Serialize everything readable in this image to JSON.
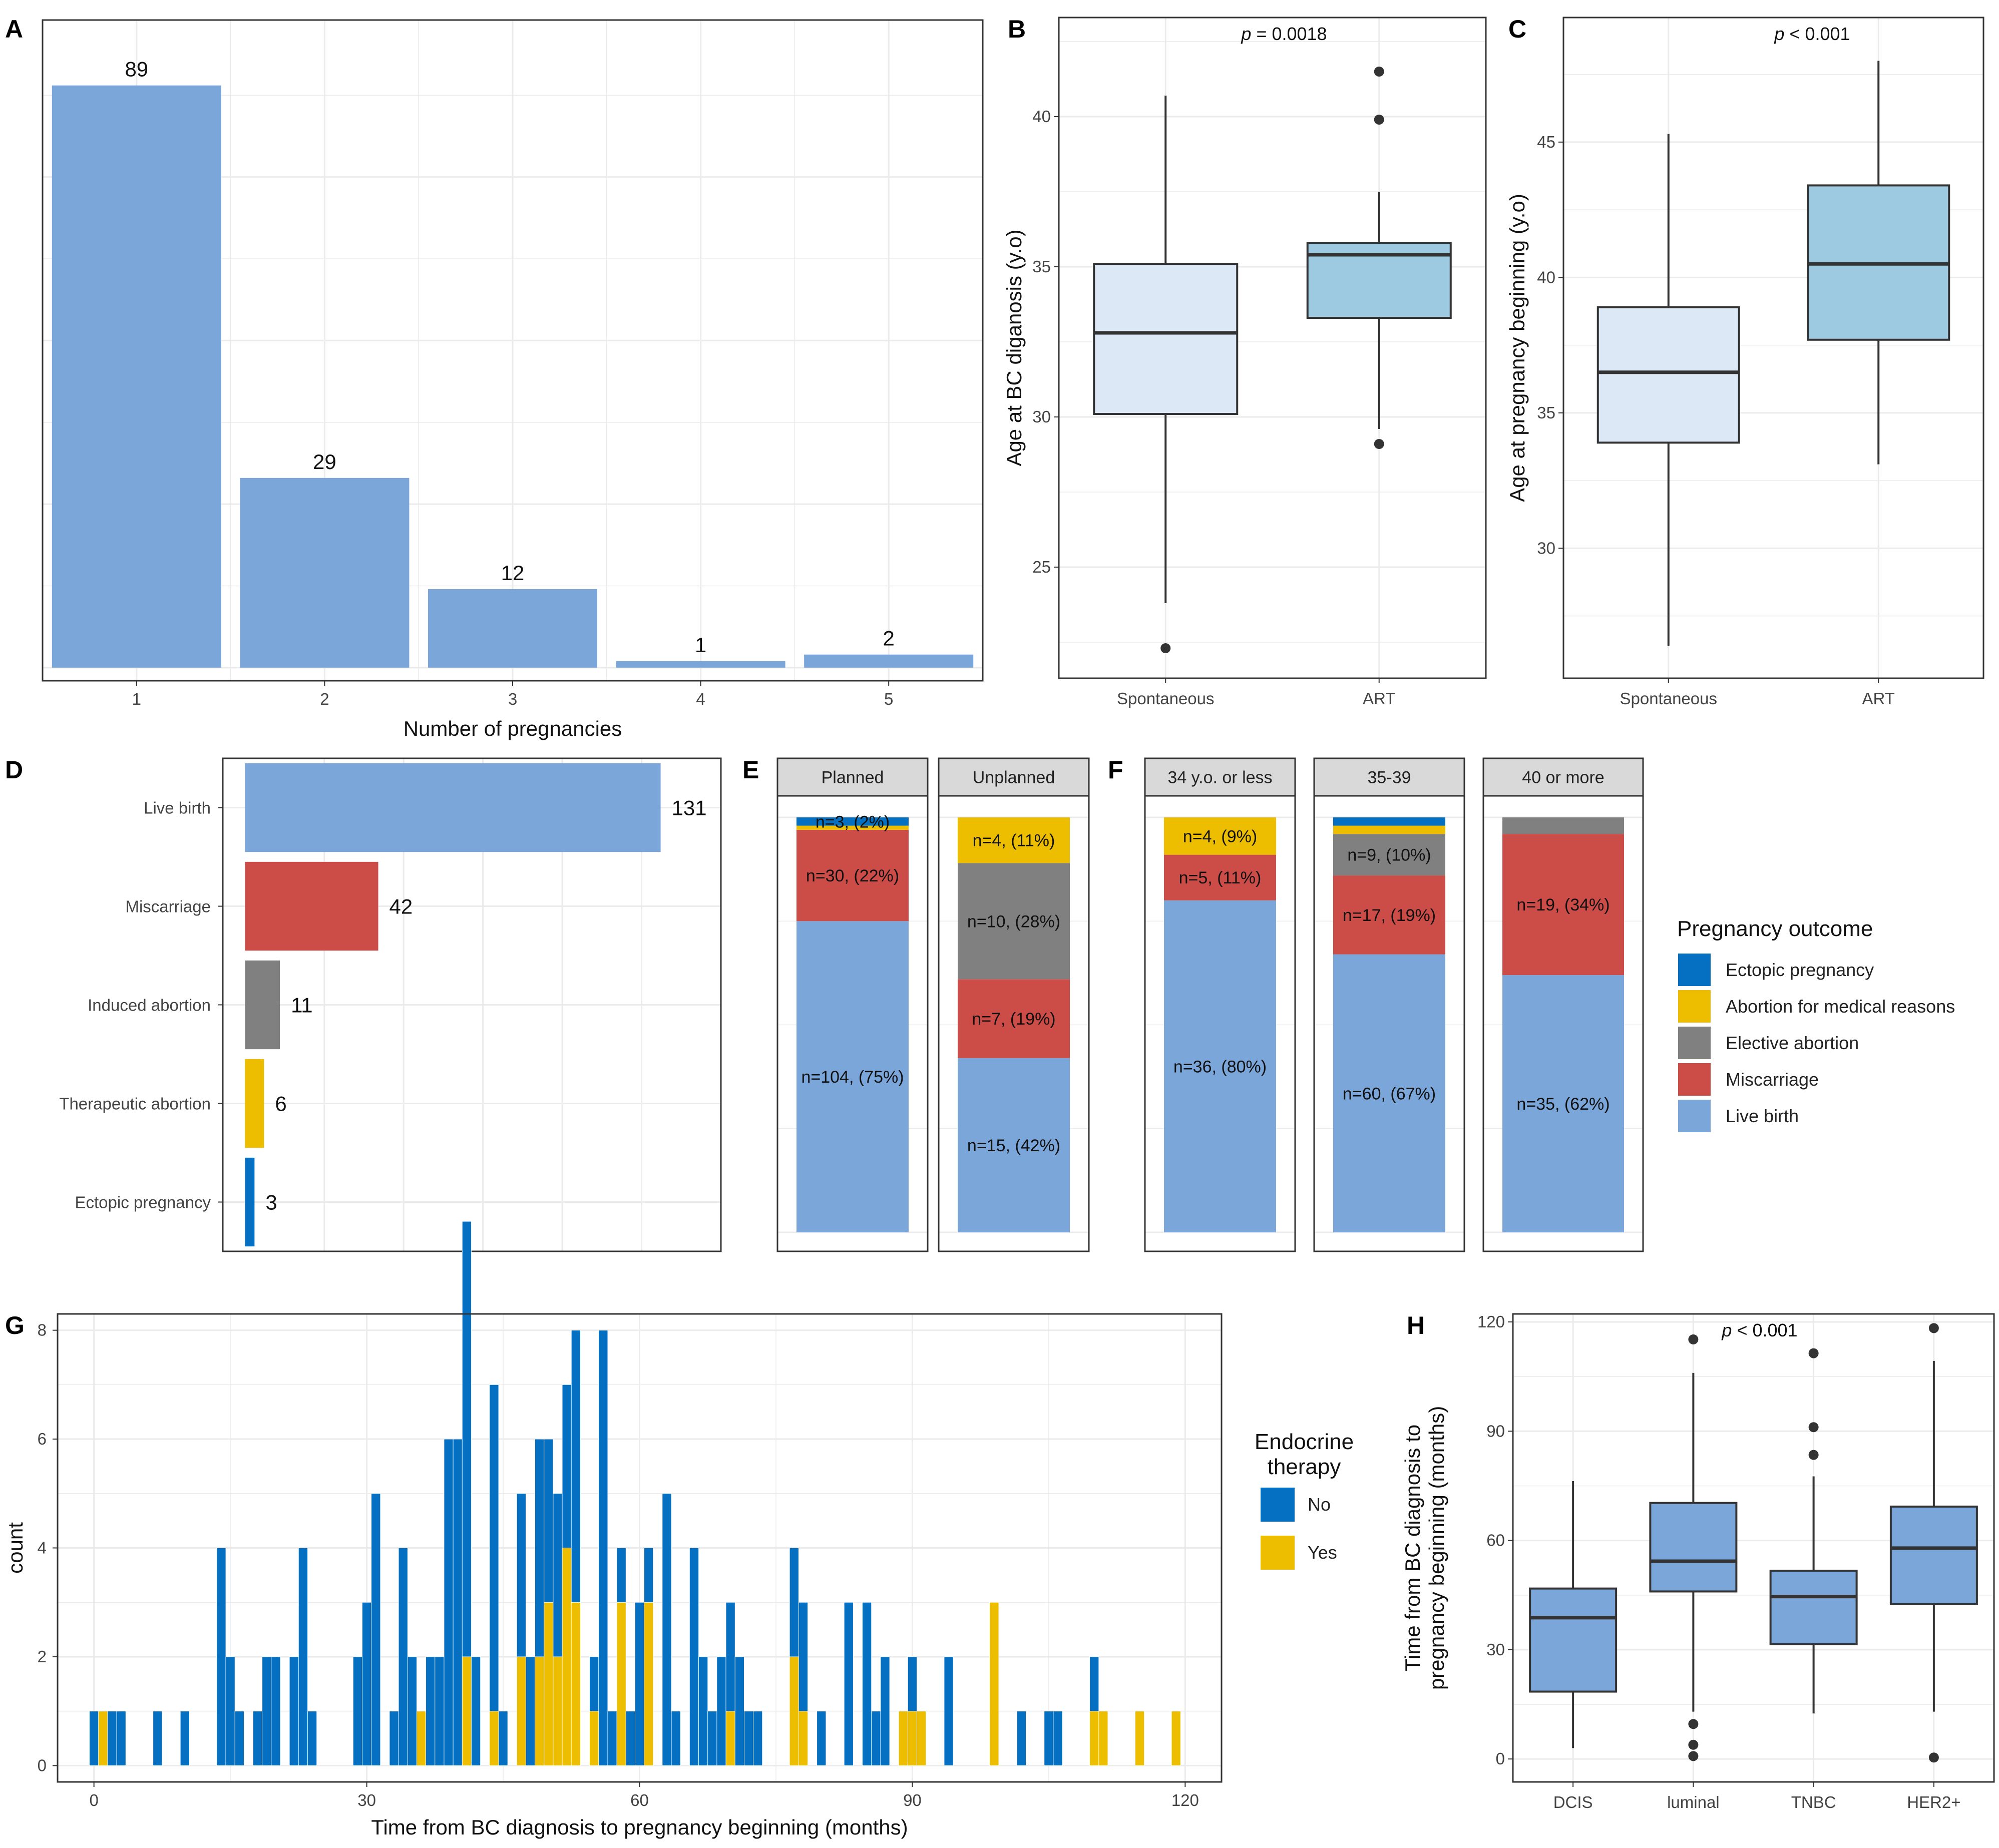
{
  "colors": {
    "live_birth": "#7BA6DA",
    "miscarriage": "#CC4C48",
    "elective": "#808080",
    "medical": "#EDBE00",
    "ectopic": "#0570C1",
    "box_spont": "#DCE8F5",
    "box_art": "#9ECAE1",
    "box_h": "#7BA6DA",
    "et_no": "#0570C1",
    "et_yes": "#EDBE00",
    "grid": "#EBEBEB",
    "strip_bg": "#D9D9D9"
  },
  "chart_data": [
    {
      "panel": "A",
      "type": "bar",
      "categories": [
        "1",
        "2",
        "3",
        "4",
        "5"
      ],
      "values": [
        89,
        29,
        12,
        1,
        2
      ],
      "xlabel": "Number of pregnancies",
      "ylabel": "",
      "ylim": [
        -2,
        99
      ]
    },
    {
      "panel": "B",
      "type": "box",
      "categories": [
        "Spontaneous",
        "ART"
      ],
      "boxes": [
        {
          "q1": 30.1,
          "median": 32.8,
          "q3": 35.1,
          "lower": 23.8,
          "upper": 40.7,
          "outliers": [
            22.3
          ]
        },
        {
          "q1": 33.3,
          "median": 35.4,
          "q3": 35.8,
          "lower": 29.6,
          "upper": 37.5,
          "outliers": [
            41.5,
            39.9,
            29.1
          ]
        }
      ],
      "ylabel": "Age at BC diganosis (y.o)",
      "yticks": [
        25,
        30,
        35,
        40
      ],
      "ylim": [
        21.3,
        43.3
      ],
      "pvalue": {
        "p": "p",
        "rest": " = 0.0018"
      }
    },
    {
      "panel": "C",
      "type": "box",
      "categories": [
        "Spontaneous",
        "ART"
      ],
      "boxes": [
        {
          "q1": 33.9,
          "median": 36.5,
          "q3": 38.9,
          "lower": 26.4,
          "upper": 45.3,
          "outliers": []
        },
        {
          "q1": 37.7,
          "median": 40.5,
          "q3": 43.4,
          "lower": 33.1,
          "upper": 48.0,
          "outliers": []
        }
      ],
      "ylabel": "Age at pregnancy beginning (y.o)",
      "yticks": [
        30,
        35,
        40,
        45
      ],
      "ylim": [
        25.2,
        49.6
      ],
      "pvalue": {
        "p": "p",
        "rest": " < 0.001"
      }
    },
    {
      "panel": "D",
      "type": "bar",
      "orientation": "horizontal",
      "categories": [
        "Live birth",
        "Miscarriage",
        "Induced abortion",
        "Therapeutic abortion",
        "Ectopic pregnancy"
      ],
      "values": [
        131,
        42,
        11,
        6,
        3
      ],
      "xlim": [
        -7,
        150
      ],
      "xgrid": [
        25,
        50,
        75,
        100,
        125
      ],
      "xlabel": "",
      "ylabel": ""
    },
    {
      "panel": "E",
      "type": "stacked-bar",
      "facets": [
        {
          "name": "Planned",
          "segments": [
            {
              "outcome": "Live birth",
              "pct": 75,
              "label": "n=104, (75%)"
            },
            {
              "outcome": "Miscarriage",
              "pct": 22,
              "label": "n=30, (22%)"
            },
            {
              "outcome": "Abortion for medical reasons",
              "pct": 1,
              "label": ""
            },
            {
              "outcome": "Ectopic pregnancy",
              "pct": 2,
              "label": "n=3, (2%)"
            }
          ]
        },
        {
          "name": "Unplanned",
          "segments": [
            {
              "outcome": "Live birth",
              "pct": 42,
              "label": "n=15, (42%)"
            },
            {
              "outcome": "Miscarriage",
              "pct": 19,
              "label": "n=7, (19%)"
            },
            {
              "outcome": "Elective abortion",
              "pct": 28,
              "label": "n=10, (28%)"
            },
            {
              "outcome": "Abortion for medical reasons",
              "pct": 11,
              "label": "n=4, (11%)"
            }
          ]
        }
      ]
    },
    {
      "panel": "F",
      "type": "stacked-bar",
      "facets": [
        {
          "name": "34 y.o. or less",
          "segments": [
            {
              "outcome": "Live birth",
              "pct": 80,
              "label": "n=36, (80%)"
            },
            {
              "outcome": "Miscarriage",
              "pct": 11,
              "label": "n=5, (11%)"
            },
            {
              "outcome": "Abortion for medical reasons",
              "pct": 9,
              "label": "n=4, (9%)"
            }
          ]
        },
        {
          "name": "35-39",
          "segments": [
            {
              "outcome": "Live birth",
              "pct": 67,
              "label": "n=60, (67%)"
            },
            {
              "outcome": "Miscarriage",
              "pct": 19,
              "label": "n=17, (19%)"
            },
            {
              "outcome": "Elective abortion",
              "pct": 10,
              "label": "n=9, (10%)"
            },
            {
              "outcome": "Abortion for medical reasons",
              "pct": 2,
              "label": ""
            },
            {
              "outcome": "Ectopic pregnancy",
              "pct": 2,
              "label": ""
            }
          ]
        },
        {
          "name": "40 or more",
          "segments": [
            {
              "outcome": "Live birth",
              "pct": 62,
              "label": "n=35, (62%)"
            },
            {
              "outcome": "Miscarriage",
              "pct": 34,
              "label": "n=19, (34%)"
            },
            {
              "outcome": "Elective abortion",
              "pct": 4,
              "label": ""
            }
          ]
        }
      ],
      "legend": {
        "title": "Pregnancy outcome",
        "items": [
          "Ectopic pregnancy",
          "Abortion for medical reasons",
          "Elective abortion",
          "Miscarriage",
          "Live birth"
        ]
      }
    },
    {
      "panel": "G",
      "type": "histogram",
      "binwidth": 1,
      "bins_start": 0,
      "xlim": [
        -4,
        124
      ],
      "ylim": [
        -0.3,
        8.3
      ],
      "xticks": [
        0,
        30,
        60,
        90,
        120
      ],
      "yticks": [
        0,
        2,
        4,
        6,
        8
      ],
      "xlabel": "Time from BC diagnosis to pregnancy beginning (months)",
      "ylabel": "count",
      "series": [
        {
          "name": "Yes",
          "values": [
            0,
            1,
            0,
            0,
            0,
            0,
            0,
            0,
            0,
            0,
            0,
            0,
            0,
            0,
            0,
            0,
            0,
            0,
            0,
            0,
            0,
            0,
            0,
            0,
            0,
            0,
            0,
            0,
            0,
            0,
            0,
            0,
            0,
            0,
            0,
            0,
            1,
            0,
            0,
            0,
            0,
            2,
            0,
            0,
            1,
            0,
            0,
            2,
            0,
            2,
            3,
            2,
            4,
            3,
            0,
            1,
            0,
            0,
            3,
            0,
            0,
            3,
            0,
            0,
            0,
            0,
            0,
            0,
            0,
            0,
            1,
            0,
            0,
            0,
            0,
            0,
            0,
            2,
            1,
            0,
            0,
            0,
            0,
            0,
            0,
            0,
            0,
            0,
            0,
            1,
            1,
            1,
            0,
            0,
            0,
            0,
            0,
            0,
            0,
            3,
            0,
            0,
            0,
            0,
            0,
            0,
            0,
            0,
            0,
            0,
            1,
            1,
            0,
            0,
            0,
            1,
            0,
            0,
            0,
            1,
            0
          ]
        },
        {
          "name": "No",
          "values": [
            1,
            0,
            1,
            1,
            0,
            0,
            0,
            1,
            0,
            0,
            1,
            0,
            0,
            0,
            4,
            2,
            1,
            0,
            1,
            2,
            2,
            0,
            2,
            4,
            1,
            0,
            0,
            0,
            0,
            2,
            3,
            5,
            0,
            1,
            4,
            2,
            0,
            2,
            2,
            6,
            6,
            8,
            2,
            0,
            6,
            1,
            0,
            3,
            2,
            4,
            3,
            3,
            3,
            5,
            0,
            1,
            8,
            1,
            1,
            1,
            3,
            1,
            0,
            5,
            1,
            0,
            4,
            2,
            1,
            2,
            2,
            2,
            1,
            1,
            0,
            0,
            0,
            2,
            2,
            0,
            1,
            0,
            0,
            3,
            0,
            3,
            1,
            2,
            0,
            0,
            1,
            0,
            0,
            0,
            2,
            0,
            0,
            0,
            0,
            0,
            0,
            0,
            1,
            0,
            0,
            1,
            1,
            0,
            0,
            0,
            1,
            0,
            0,
            0,
            0,
            0,
            0,
            0,
            0,
            0,
            0
          ]
        }
      ],
      "legend": {
        "title": [
          "Endocrine",
          "therapy"
        ],
        "items": [
          "No",
          "Yes"
        ]
      }
    },
    {
      "panel": "H",
      "type": "box",
      "categories": [
        "DCIS",
        "luminal",
        "TNBC",
        "HER2+"
      ],
      "boxes": [
        {
          "q1": 18.5,
          "median": 38.8,
          "q3": 46.8,
          "lower": 3.0,
          "upper": 76.3,
          "outliers": []
        },
        {
          "q1": 46.0,
          "median": 54.3,
          "q3": 70.3,
          "lower": 13.0,
          "upper": 106.0,
          "outliers": [
            115.2,
            9.6,
            3.9,
            0.8
          ]
        },
        {
          "q1": 31.5,
          "median": 44.6,
          "q3": 51.7,
          "lower": 12.5,
          "upper": 77.6,
          "outliers": [
            111.4,
            91.1,
            83.5
          ]
        },
        {
          "q1": 42.5,
          "median": 57.9,
          "q3": 69.3,
          "lower": 13.0,
          "upper": 109.3,
          "outliers": [
            118.3,
            0.4
          ]
        }
      ],
      "ylabel": [
        "Time from BC diagnosis to",
        "pregnancy beginning (months)"
      ],
      "yticks": [
        0,
        30,
        60,
        90,
        120
      ],
      "ylim": [
        -6.3,
        122.2
      ],
      "pvalue": {
        "p": "p",
        "rest": " < 0.001"
      }
    }
  ]
}
